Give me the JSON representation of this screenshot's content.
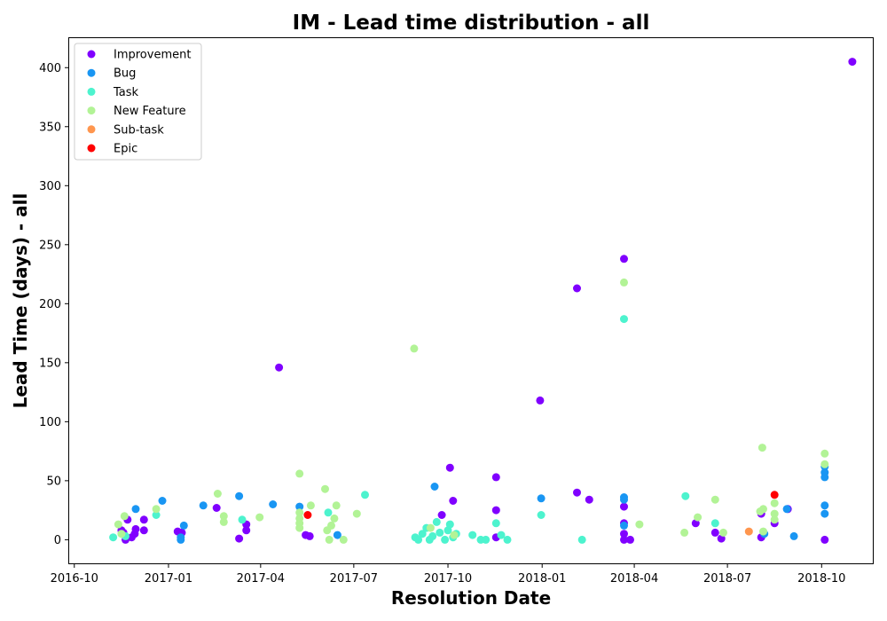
{
  "chart_data": {
    "type": "scatter",
    "title": "IM - Lead time distribution - all",
    "xlabel": "Resolution Date",
    "ylabel": "Lead Time (days) - all",
    "x_ticks": [
      "2016-10",
      "2017-01",
      "2017-04",
      "2017-07",
      "2017-10",
      "2018-01",
      "2018-04",
      "2018-07",
      "2018-10"
    ],
    "y_ticks": [
      0,
      50,
      100,
      150,
      200,
      250,
      300,
      350,
      400
    ],
    "xlim": [
      "2016-09-26",
      "2018-11-20"
    ],
    "ylim": [
      -20,
      425
    ],
    "grid": false,
    "legend_position": "top-left",
    "series": [
      {
        "name": "Improvement",
        "color": "#8000ff",
        "points": [
          [
            "2016-11-16",
            8
          ],
          [
            "2016-11-18",
            6
          ],
          [
            "2016-11-20",
            0
          ],
          [
            "2016-11-22",
            17
          ],
          [
            "2016-11-26",
            2
          ],
          [
            "2016-11-29",
            5
          ],
          [
            "2016-11-30",
            9
          ],
          [
            "2016-12-08",
            17
          ],
          [
            "2016-12-08",
            8
          ],
          [
            "2017-01-10",
            7
          ],
          [
            "2017-01-14",
            6
          ],
          [
            "2017-02-17",
            27
          ],
          [
            "2017-03-11",
            1
          ],
          [
            "2017-03-18",
            8
          ],
          [
            "2017-03-18",
            13
          ],
          [
            "2017-04-19",
            146
          ],
          [
            "2017-05-15",
            4
          ],
          [
            "2017-05-19",
            3
          ],
          [
            "2017-09-25",
            21
          ],
          [
            "2017-10-03",
            61
          ],
          [
            "2017-10-06",
            33
          ],
          [
            "2017-11-17",
            25
          ],
          [
            "2017-11-17",
            53
          ],
          [
            "2017-11-17",
            2
          ],
          [
            "2017-12-30",
            118
          ],
          [
            "2018-02-04",
            40
          ],
          [
            "2018-02-04",
            213
          ],
          [
            "2018-02-16",
            34
          ],
          [
            "2018-03-22",
            238
          ],
          [
            "2018-03-22",
            28
          ],
          [
            "2018-03-22",
            14
          ],
          [
            "2018-03-22",
            5
          ],
          [
            "2018-03-22",
            0
          ],
          [
            "2018-03-28",
            0
          ],
          [
            "2018-05-31",
            14
          ],
          [
            "2018-06-19",
            6
          ],
          [
            "2018-06-25",
            1
          ],
          [
            "2018-08-03",
            22
          ],
          [
            "2018-08-03",
            2
          ],
          [
            "2018-08-16",
            14
          ],
          [
            "2018-08-29",
            26
          ],
          [
            "2018-10-04",
            0
          ],
          [
            "2018-10-31",
            405
          ]
        ]
      },
      {
        "name": "Bug",
        "color": "#1996f3",
        "points": [
          [
            "2016-11-30",
            26
          ],
          [
            "2016-12-26",
            33
          ],
          [
            "2017-01-13",
            0
          ],
          [
            "2017-01-13",
            2
          ],
          [
            "2017-01-16",
            12
          ],
          [
            "2017-02-04",
            29
          ],
          [
            "2017-03-11",
            37
          ],
          [
            "2017-04-13",
            30
          ],
          [
            "2017-05-09",
            28
          ],
          [
            "2017-06-15",
            4
          ],
          [
            "2017-09-18",
            45
          ],
          [
            "2017-12-31",
            35
          ],
          [
            "2018-03-22",
            36
          ],
          [
            "2018-03-22",
            34
          ],
          [
            "2018-03-22",
            12
          ],
          [
            "2018-08-06",
            5
          ],
          [
            "2018-08-28",
            26
          ],
          [
            "2018-09-04",
            3
          ],
          [
            "2018-10-04",
            62
          ],
          [
            "2018-10-04",
            57
          ],
          [
            "2018-10-04",
            53
          ],
          [
            "2018-10-04",
            29
          ],
          [
            "2018-10-04",
            22
          ]
        ]
      },
      {
        "name": "Task",
        "color": "#4df3ce",
        "points": [
          [
            "2016-11-08",
            2
          ],
          [
            "2016-11-20",
            3
          ],
          [
            "2016-12-20",
            21
          ],
          [
            "2017-03-14",
            17
          ],
          [
            "2017-06-06",
            23
          ],
          [
            "2017-07-12",
            38
          ],
          [
            "2017-08-30",
            2
          ],
          [
            "2017-09-02",
            0
          ],
          [
            "2017-09-06",
            5
          ],
          [
            "2017-09-10",
            10
          ],
          [
            "2017-09-13",
            0
          ],
          [
            "2017-09-16",
            3
          ],
          [
            "2017-09-20",
            15
          ],
          [
            "2017-09-23",
            6
          ],
          [
            "2017-09-28",
            0
          ],
          [
            "2017-10-01",
            8
          ],
          [
            "2017-10-03",
            13
          ],
          [
            "2017-10-06",
            2
          ],
          [
            "2017-10-09",
            5
          ],
          [
            "2017-10-25",
            4
          ],
          [
            "2017-11-02",
            0
          ],
          [
            "2017-11-07",
            0
          ],
          [
            "2017-11-17",
            14
          ],
          [
            "2017-11-22",
            4
          ],
          [
            "2017-11-28",
            0
          ],
          [
            "2017-12-31",
            21
          ],
          [
            "2018-02-09",
            0
          ],
          [
            "2018-03-22",
            187
          ],
          [
            "2018-05-21",
            37
          ],
          [
            "2018-06-19",
            14
          ]
        ]
      },
      {
        "name": "New Feature",
        "color": "#b2f396",
        "points": [
          [
            "2016-11-13",
            13
          ],
          [
            "2016-11-16",
            5
          ],
          [
            "2016-11-19",
            20
          ],
          [
            "2016-12-20",
            26
          ],
          [
            "2017-02-18",
            39
          ],
          [
            "2017-02-24",
            20
          ],
          [
            "2017-02-24",
            15
          ],
          [
            "2017-03-31",
            19
          ],
          [
            "2017-05-09",
            56
          ],
          [
            "2017-05-09",
            23
          ],
          [
            "2017-05-09",
            18
          ],
          [
            "2017-05-09",
            14
          ],
          [
            "2017-05-09",
            10
          ],
          [
            "2017-05-20",
            29
          ],
          [
            "2017-06-03",
            43
          ],
          [
            "2017-06-05",
            8
          ],
          [
            "2017-06-07",
            0
          ],
          [
            "2017-06-09",
            12
          ],
          [
            "2017-06-12",
            18
          ],
          [
            "2017-06-14",
            29
          ],
          [
            "2017-06-21",
            0
          ],
          [
            "2017-07-04",
            22
          ],
          [
            "2017-08-29",
            162
          ],
          [
            "2017-09-14",
            10
          ],
          [
            "2017-10-07",
            4
          ],
          [
            "2018-03-22",
            218
          ],
          [
            "2018-04-06",
            13
          ],
          [
            "2018-05-20",
            6
          ],
          [
            "2018-06-02",
            19
          ],
          [
            "2018-06-19",
            34
          ],
          [
            "2018-06-27",
            6
          ],
          [
            "2018-08-02",
            24
          ],
          [
            "2018-08-04",
            78
          ],
          [
            "2018-08-05",
            26
          ],
          [
            "2018-08-05",
            7
          ],
          [
            "2018-08-16",
            31
          ],
          [
            "2018-08-16",
            22
          ],
          [
            "2018-08-16",
            17
          ],
          [
            "2018-10-04",
            73
          ],
          [
            "2018-10-04",
            64
          ]
        ]
      },
      {
        "name": "Sub-task",
        "color": "#ff964e",
        "points": [
          [
            "2018-07-22",
            7
          ]
        ]
      },
      {
        "name": "Epic",
        "color": "#ff0000",
        "points": [
          [
            "2017-05-17",
            21
          ],
          [
            "2018-08-16",
            38
          ]
        ]
      }
    ]
  }
}
